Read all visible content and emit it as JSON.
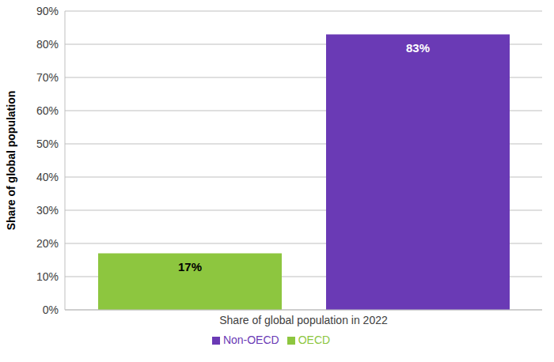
{
  "chart_data": {
    "type": "bar",
    "categories": [
      "Share of global population in 2022"
    ],
    "series": [
      {
        "name": "OECD",
        "color": "#8dc63f",
        "values": [
          17
        ],
        "value_labels": [
          "17%"
        ]
      },
      {
        "name": "Non-OECD",
        "color": "#6a3ab5",
        "values": [
          83
        ],
        "value_labels": [
          "83%"
        ]
      }
    ],
    "y_label": "Share of global population",
    "ylim": [
      0,
      90
    ],
    "yticks": [
      {
        "value": 0,
        "label": "0%"
      },
      {
        "value": 10,
        "label": "10%"
      },
      {
        "value": 20,
        "label": "20%"
      },
      {
        "value": 30,
        "label": "30%"
      },
      {
        "value": 40,
        "label": "40%"
      },
      {
        "value": 50,
        "label": "50%"
      },
      {
        "value": 60,
        "label": "60%"
      },
      {
        "value": 70,
        "label": "70%"
      },
      {
        "value": 80,
        "label": "80%"
      },
      {
        "value": 90,
        "label": "90%"
      }
    ],
    "grid": true,
    "legend": "bottom",
    "data_labels": true
  }
}
